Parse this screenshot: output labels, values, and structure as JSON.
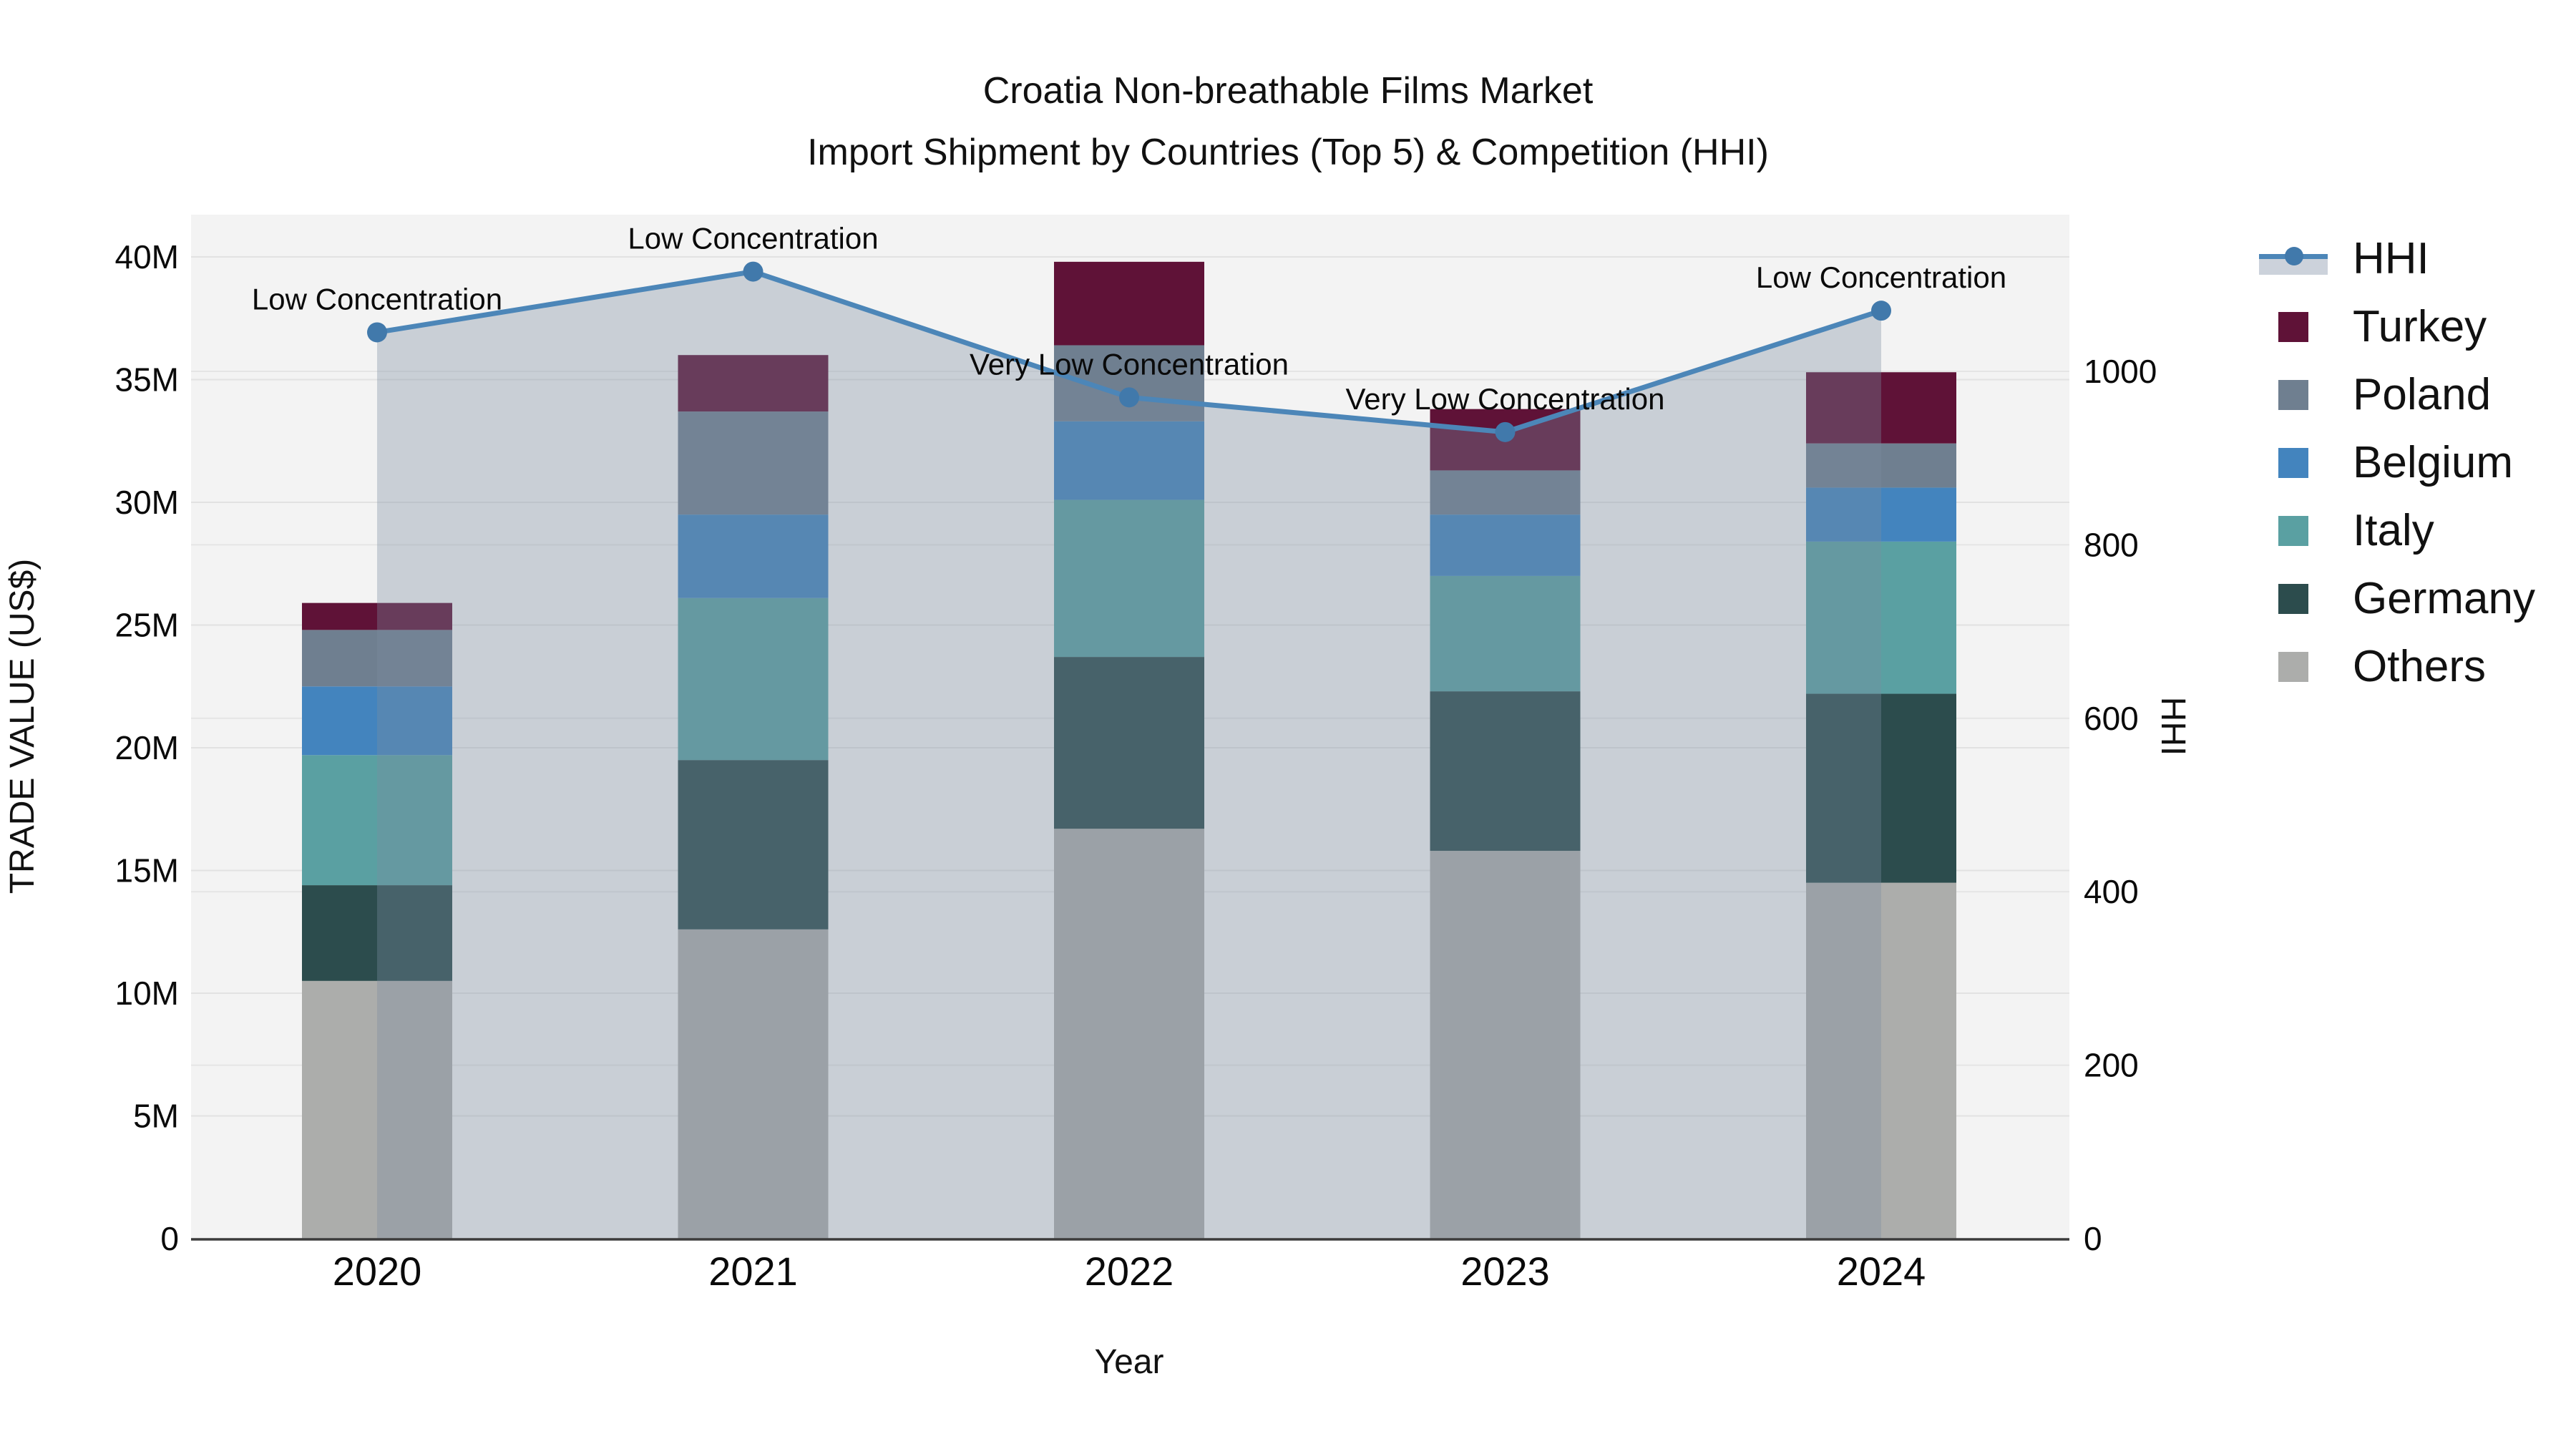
{
  "title": {
    "line1": "Croatia Non-breathable Films Market",
    "line2": "Import Shipment by Countries (Top 5) & Competition (HHI)"
  },
  "axes": {
    "y_left_title": "TRADE VALUE (US$)",
    "y_right_title": "HHI",
    "x_title": "Year"
  },
  "legend": {
    "hhi_label": "HHI",
    "order": [
      "HHI",
      "Turkey",
      "Poland",
      "Belgium",
      "Italy",
      "Germany",
      "Others"
    ]
  },
  "style": {
    "plot_bg": "#F3F3F3",
    "grid_color": "#E2E2E2",
    "axis_line_color": "#3C3C3C",
    "hhi_line_color": "#4C86B8",
    "area_fill": "rgba(124,140,160,0.35)",
    "text_color": "#0A0A0A"
  },
  "chart_data": {
    "type": "bar",
    "subtype": "stacked-bars-with-line-overlay",
    "title": "Croatia Non-breathable Films Market — Import Shipment by Countries (Top 5) & Competition (HHI)",
    "categories": [
      "2020",
      "2021",
      "2022",
      "2023",
      "2024"
    ],
    "bar_value_unit": "million US$",
    "series": [
      {
        "name": "Others",
        "color": "#ACADAB",
        "values": [
          10.5,
          12.6,
          16.7,
          15.8,
          14.5
        ]
      },
      {
        "name": "Germany",
        "color": "#2C4C4D",
        "values": [
          3.9,
          6.9,
          7.0,
          6.5,
          7.7
        ]
      },
      {
        "name": "Italy",
        "color": "#5AA0A2",
        "values": [
          5.3,
          6.6,
          6.4,
          4.7,
          6.2
        ]
      },
      {
        "name": "Belgium",
        "color": "#4384BE",
        "values": [
          2.8,
          3.4,
          3.2,
          2.5,
          2.2
        ]
      },
      {
        "name": "Poland",
        "color": "#6F7F90",
        "values": [
          2.3,
          4.2,
          3.1,
          1.8,
          1.8
        ]
      },
      {
        "name": "Turkey",
        "color": "#5F1237",
        "values": [
          1.1,
          2.3,
          3.4,
          2.5,
          2.9
        ]
      }
    ],
    "bar_totals": [
      25.9,
      36.0,
      39.8,
      33.8,
      35.3
    ],
    "line": {
      "name": "HHI",
      "color": "#4C86B8",
      "values": [
        1045,
        1115,
        970,
        930,
        1070
      ],
      "fill": "tozeroy",
      "area_fill_color": "rgba(124,140,160,0.35)"
    },
    "annotations": [
      {
        "x": "2020",
        "text": "Low Concentration"
      },
      {
        "x": "2021",
        "text": "Low Concentration"
      },
      {
        "x": "2022",
        "text": "Very Low Concentration"
      },
      {
        "x": "2023",
        "text": "Very Low Concentration"
      },
      {
        "x": "2024",
        "text": "Low Concentration"
      }
    ],
    "xlabel": "Year",
    "y_left": {
      "label": "TRADE VALUE (US$)",
      "min": 0,
      "max": 40000000,
      "tick_labels": [
        "0",
        "5M",
        "10M",
        "15M",
        "20M",
        "25M",
        "30M",
        "35M",
        "40M"
      ]
    },
    "y_right": {
      "label": "HHI",
      "min": 0,
      "max": 1000,
      "tick_labels": [
        "0",
        "200",
        "400",
        "600",
        "800",
        "1000"
      ]
    },
    "grid": true,
    "legend_position": "right"
  }
}
